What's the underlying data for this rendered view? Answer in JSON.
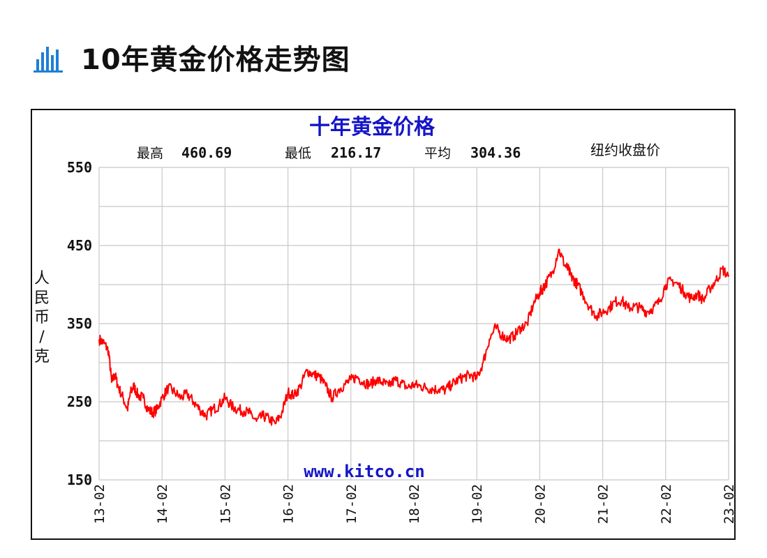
{
  "page": {
    "heading": "10年黄金价格走势图",
    "heading_icon": "bar-chart-icon",
    "accent": "#1e7fd6"
  },
  "chart_data": {
    "type": "line",
    "title": "十年黄金价格",
    "stats": {
      "max_label": "最高",
      "max_value": "460.69",
      "min_label": "最低",
      "min_value": "216.17",
      "avg_label": "平均",
      "avg_value": "304.36",
      "price_type": "纽约收盘价"
    },
    "ylabel": "人民币/克",
    "ylim": [
      150,
      550
    ],
    "yticks": [
      150,
      250,
      350,
      450,
      550
    ],
    "xticks": [
      "13-02",
      "14-02",
      "15-02",
      "16-02",
      "17-02",
      "18-02",
      "19-02",
      "20-02",
      "21-02",
      "22-02",
      "23-02"
    ],
    "xlim": [
      0,
      10
    ],
    "grid": true,
    "watermark": "www.kitco.cn",
    "line_color": "#ff0000",
    "series": [
      {
        "x": [
          0.0,
          0.08,
          0.15,
          0.2,
          0.25,
          0.3,
          0.38,
          0.45,
          0.5,
          0.55,
          0.62,
          0.7,
          0.78,
          0.85,
          0.92,
          1.0,
          1.1,
          1.2,
          1.3,
          1.4,
          1.5,
          1.6,
          1.7,
          1.8,
          1.9,
          2.0,
          2.1,
          2.2,
          2.3,
          2.4,
          2.5,
          2.6,
          2.7,
          2.8,
          2.9,
          3.0,
          3.1,
          3.2,
          3.3,
          3.4,
          3.5,
          3.6,
          3.7,
          3.8,
          3.9,
          4.0,
          4.1,
          4.2,
          4.3,
          4.4,
          4.5,
          4.6,
          4.7,
          4.8,
          4.9,
          5.0,
          5.1,
          5.2,
          5.3,
          5.4,
          5.5,
          5.6,
          5.7,
          5.8,
          5.9,
          6.0,
          6.1,
          6.2,
          6.3,
          6.4,
          6.5,
          6.6,
          6.7,
          6.8,
          6.9,
          7.0,
          7.05,
          7.1,
          7.2,
          7.3,
          7.4,
          7.45,
          7.5,
          7.55,
          7.6,
          7.7,
          7.8,
          7.9,
          8.0,
          8.1,
          8.2,
          8.3,
          8.4,
          8.5,
          8.6,
          8.7,
          8.8,
          8.9,
          9.0,
          9.1,
          9.2,
          9.3,
          9.4,
          9.5,
          9.6,
          9.7,
          9.8,
          9.9,
          10.0
        ],
        "y": [
          330,
          325,
          315,
          275,
          285,
          270,
          255,
          240,
          262,
          270,
          258,
          255,
          240,
          236,
          240,
          255,
          268,
          262,
          255,
          260,
          250,
          240,
          232,
          240,
          245,
          255,
          245,
          240,
          238,
          235,
          225,
          232,
          228,
          222,
          235,
          262,
          258,
          270,
          290,
          285,
          282,
          270,
          255,
          265,
          272,
          278,
          282,
          275,
          272,
          278,
          275,
          270,
          278,
          274,
          268,
          272,
          270,
          268,
          266,
          266,
          265,
          272,
          278,
          282,
          284,
          280,
          300,
          330,
          345,
          335,
          330,
          335,
          345,
          350,
          375,
          390,
          395,
          402,
          415,
          445,
          425,
          420,
          410,
          405,
          400,
          385,
          370,
          360,
          365,
          370,
          378,
          380,
          370,
          372,
          370,
          365,
          370,
          378,
          400,
          405,
          400,
          390,
          382,
          388,
          380,
          395,
          405,
          420,
          410
        ]
      }
    ]
  }
}
